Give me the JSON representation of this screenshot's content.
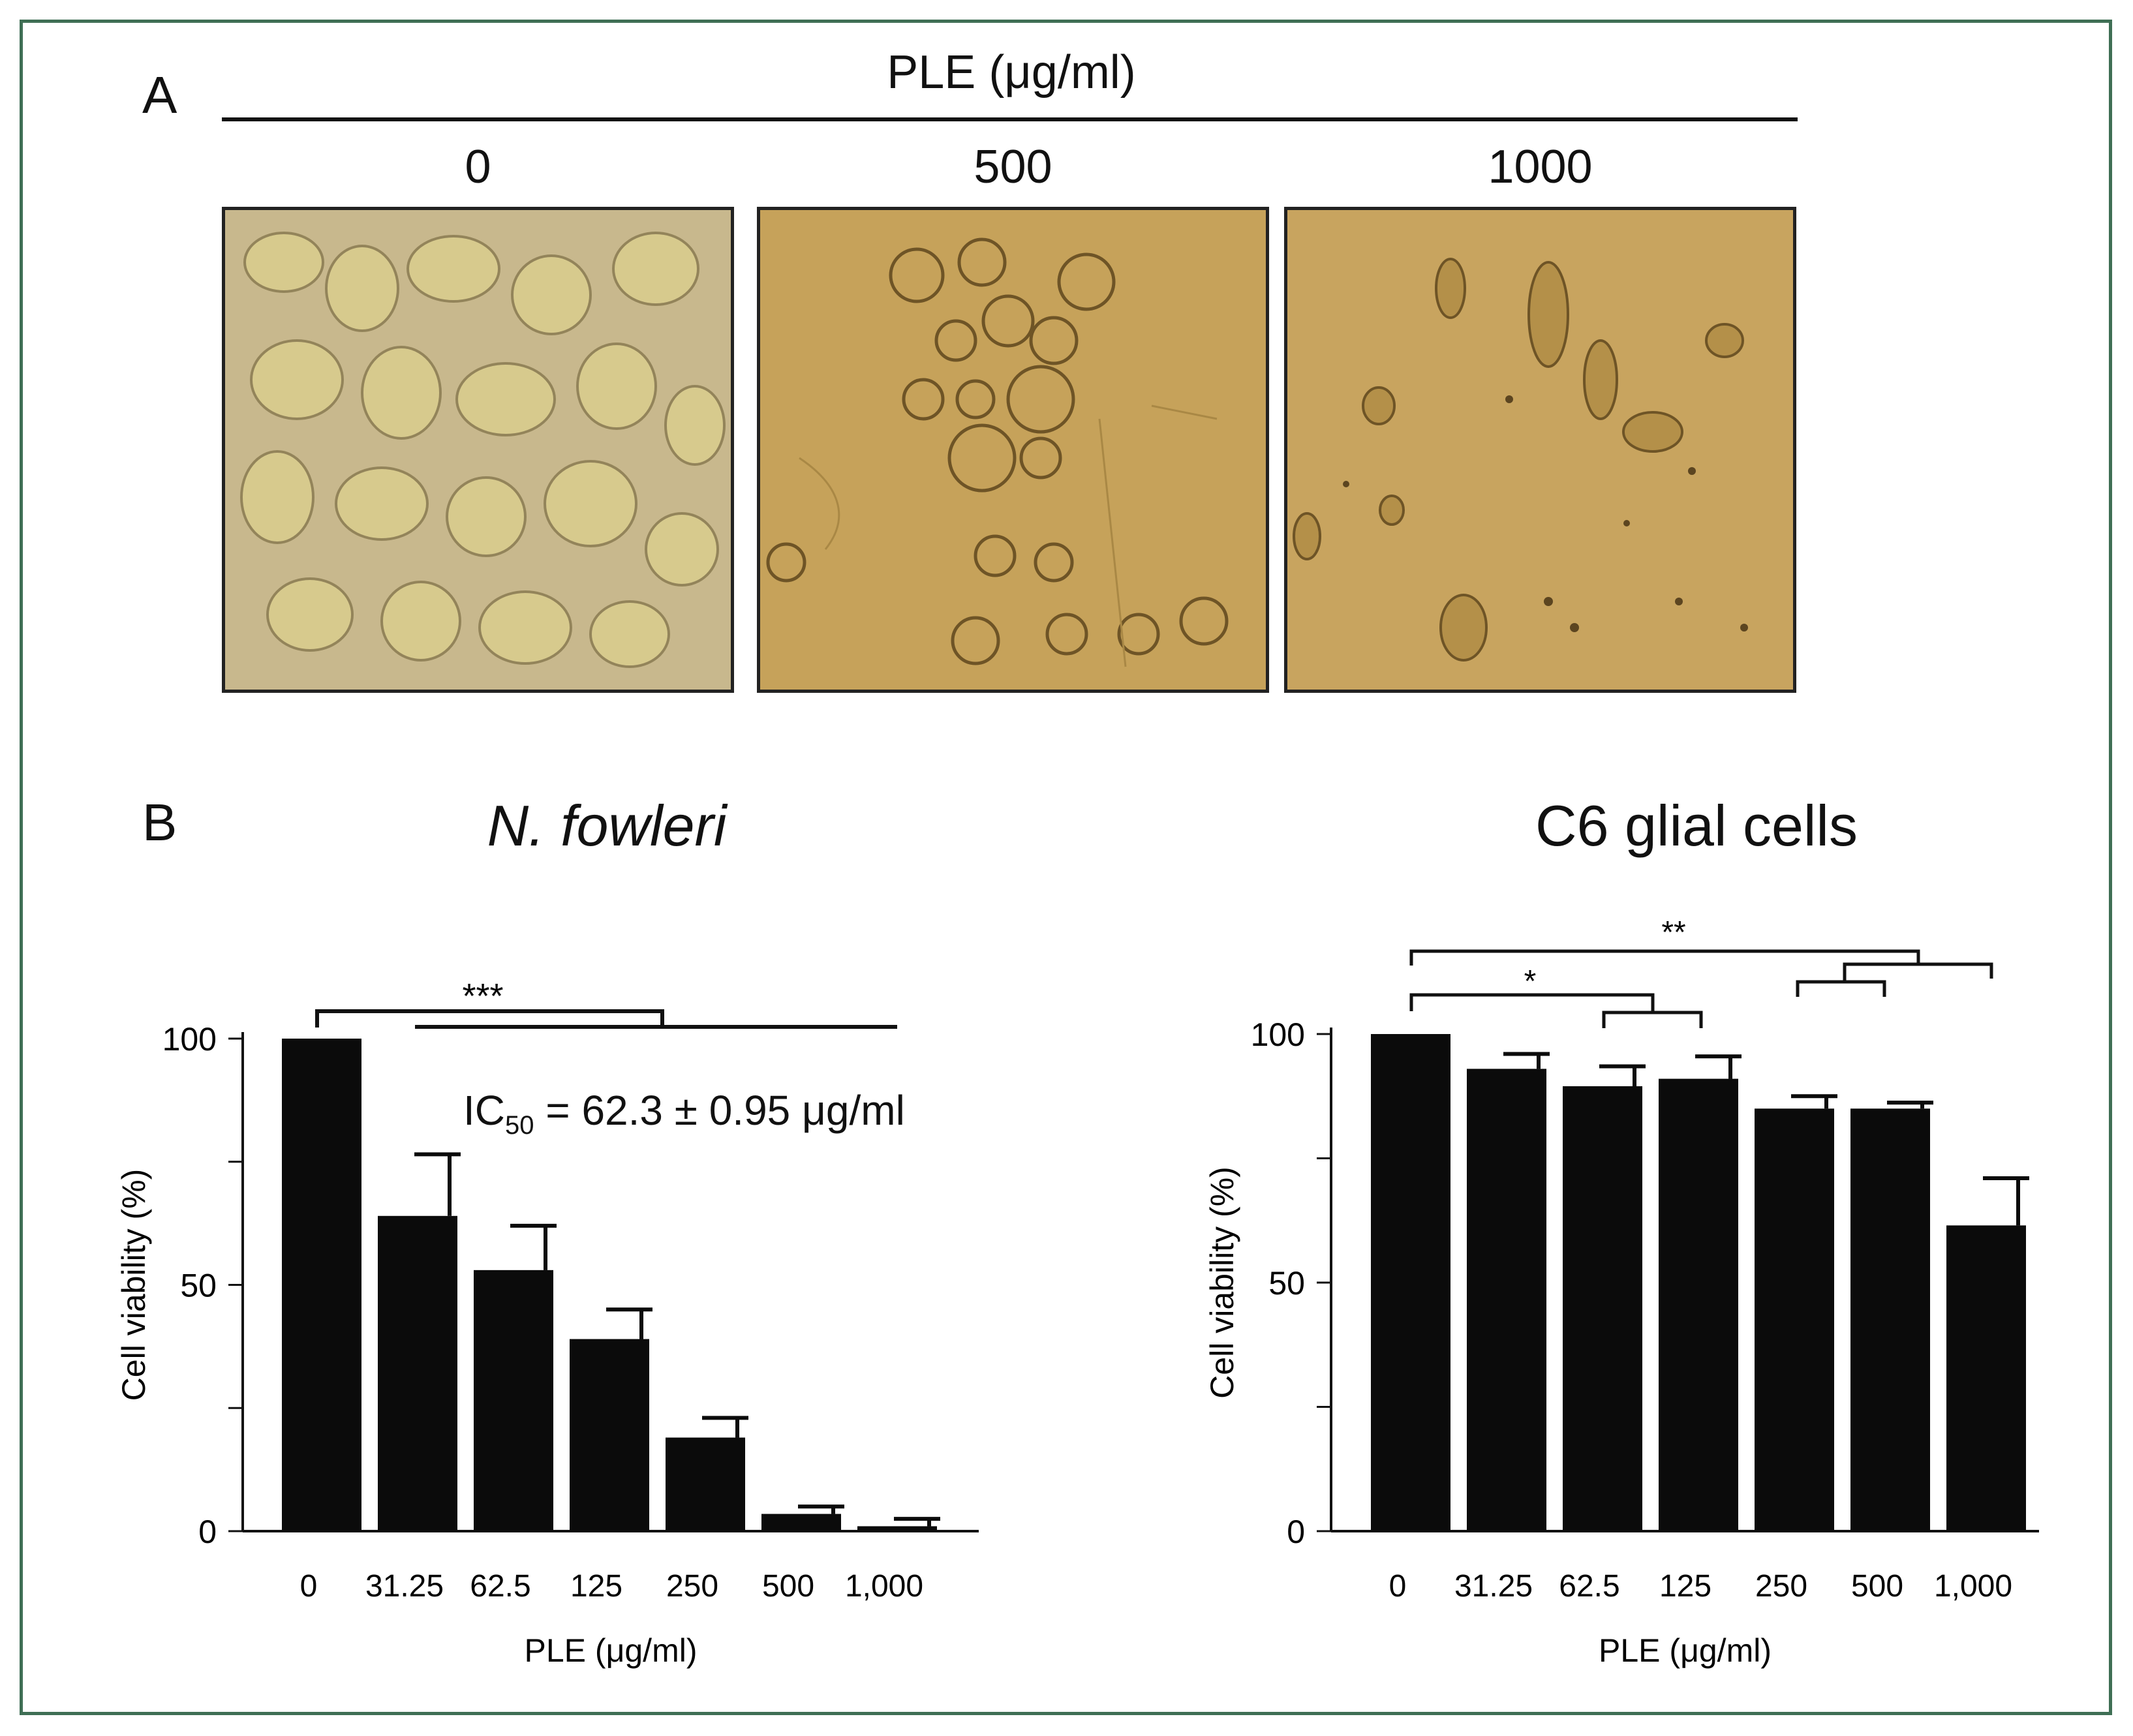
{
  "panels": {
    "a_label": "A",
    "b_label": "B"
  },
  "panel_a": {
    "header": "PLE (μg/ml)",
    "images": [
      {
        "label": "0",
        "bg": "#c9b98f"
      },
      {
        "label": "500",
        "bg": "#c6a25a"
      },
      {
        "label": "1000",
        "bg": "#c8a45f"
      }
    ]
  },
  "chart_data": [
    {
      "type": "bar",
      "title": "N. fowleri",
      "xlabel": "PLE (μg/ml)",
      "ylabel": "Cell viability (%)",
      "categories": [
        "0",
        "31.25",
        "62.5",
        "125",
        "250",
        "500",
        "1,000"
      ],
      "values": [
        100,
        64,
        53,
        39,
        19,
        3.5,
        1
      ],
      "errors": [
        0,
        12.5,
        9,
        6,
        4,
        1.5,
        1.5
      ],
      "ylim": [
        0,
        100
      ],
      "yticks": [
        "0",
        "50",
        "100"
      ],
      "annotation": {
        "text": "IC",
        "sub": "50",
        "rest": " = 62.3 ± 0.95 μg/ml"
      },
      "significance": [
        {
          "label": "***",
          "from": "0",
          "to": "31.25–1,000"
        }
      ]
    },
    {
      "type": "bar",
      "title": "C6 glial cells",
      "xlabel": "PLE (μg/ml)",
      "ylabel": "Cell viability (%)",
      "categories": [
        "0",
        "31.25",
        "62.5",
        "125",
        "250",
        "500",
        "1,000"
      ],
      "values": [
        100,
        93,
        89.5,
        91,
        85,
        85,
        61.5
      ],
      "errors": [
        0,
        3,
        4,
        4.5,
        2.5,
        1.2,
        9.5
      ],
      "ylim": [
        0,
        100
      ],
      "yticks": [
        "0",
        "50",
        "100"
      ],
      "significance": [
        {
          "label": "*",
          "from": "0",
          "to": "62.5–125"
        },
        {
          "label": "**",
          "from": "0",
          "to": "250–1,000"
        }
      ]
    }
  ]
}
